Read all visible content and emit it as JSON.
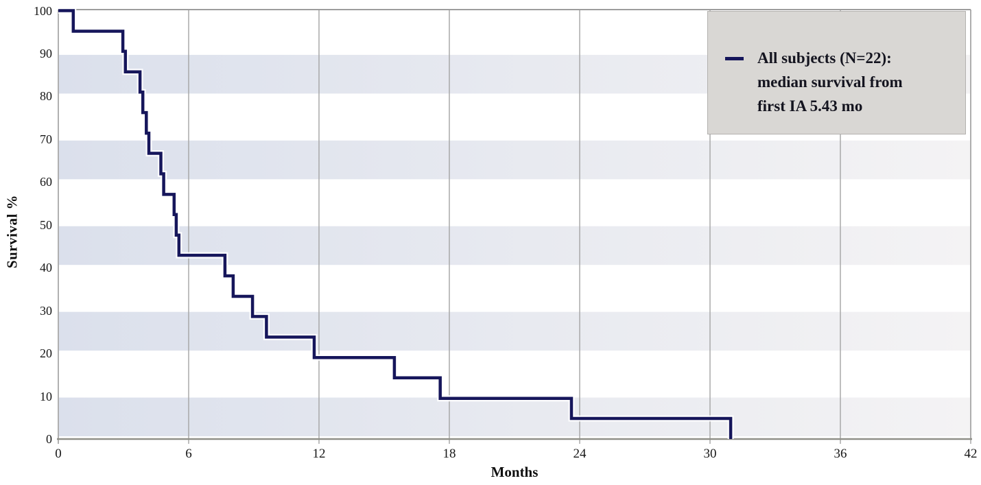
{
  "figure": {
    "y_axis": {
      "title": "Survival %",
      "tick_labels": [
        "0",
        "10",
        "20",
        "30",
        "40",
        "50",
        "60",
        "70",
        "80",
        "90",
        "100"
      ]
    },
    "x_axis": {
      "title": "Months",
      "tick_labels": [
        "0",
        "6",
        "12",
        "18",
        "24",
        "30",
        "36",
        "42"
      ]
    },
    "legend": {
      "lines": [
        "All subjects (N=22):",
        "median survival from",
        "first IA 5.43 mo"
      ],
      "marker": "navy-dash"
    }
  },
  "chart_data": {
    "type": "line",
    "subtype": "kaplan-meier-step",
    "title": "",
    "xlabel": "Months",
    "ylabel": "Survival %",
    "xlim": [
      0,
      42
    ],
    "ylim": [
      0,
      100
    ],
    "x_ticks": [
      0,
      6,
      12,
      18,
      24,
      30,
      36,
      42
    ],
    "y_ticks": [
      0,
      10,
      20,
      30,
      40,
      50,
      60,
      70,
      80,
      90,
      100
    ],
    "grid": "vertical-gridlines-at-x-ticks",
    "legend_position": "top-right",
    "n_subjects": 22,
    "median_survival_months": 5.43,
    "series": [
      {
        "name": "All subjects (N=22): median survival from first IA 5.43 mo",
        "color": "#16165b",
        "start": [
          0,
          100
        ],
        "drops": [
          [
            0.69,
            95.2
          ],
          [
            2.97,
            90.5
          ],
          [
            3.09,
            85.7
          ],
          [
            3.76,
            81.0
          ],
          [
            3.89,
            76.2
          ],
          [
            4.05,
            71.4
          ],
          [
            4.17,
            66.7
          ],
          [
            4.72,
            61.9
          ],
          [
            4.85,
            57.1
          ],
          [
            5.33,
            52.4
          ],
          [
            5.43,
            47.6
          ],
          [
            5.55,
            42.9
          ],
          [
            7.67,
            38.1
          ],
          [
            8.05,
            33.3
          ],
          [
            8.94,
            28.6
          ],
          [
            9.58,
            23.8
          ],
          [
            11.78,
            19.0
          ],
          [
            15.47,
            14.3
          ],
          [
            17.58,
            9.5
          ],
          [
            23.62,
            4.8
          ],
          [
            30.95,
            0
          ]
        ]
      }
    ],
    "shaded_bands": [
      [
        0,
        10
      ],
      [
        20,
        30
      ],
      [
        40,
        50
      ],
      [
        60,
        70
      ],
      [
        80,
        90
      ]
    ]
  },
  "colors": {
    "curve": "#16165b",
    "curve_halo": "#ffffff",
    "band_gradient_left": "#dbe0ec",
    "band_gradient_right": "#f4f3f4",
    "gridline": "#a3a3a3",
    "axis_line": "#8f8f88",
    "border_line": "#9c9c9c",
    "legend_background": "#d9d7d4",
    "legend_border": "#b3b1ae",
    "text": "#161616"
  }
}
